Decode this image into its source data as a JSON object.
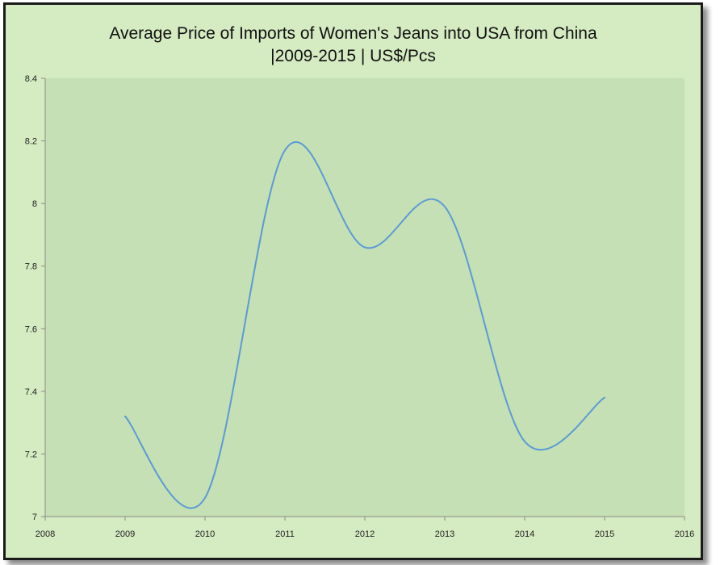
{
  "chart_data": {
    "type": "line",
    "title_line1": "Average Price of Imports of Women's Jeans into USA from China",
    "title_line2": "|2009-2015  | US$/Pcs",
    "xlabel": "",
    "ylabel": "",
    "x": [
      2009,
      2010,
      2011,
      2012,
      2013,
      2014,
      2015
    ],
    "series": [
      {
        "values": [
          7.32,
          7.06,
          8.17,
          7.86,
          7.99,
          7.24,
          7.38
        ]
      }
    ],
    "xlim": [
      2008,
      2016
    ],
    "ylim": [
      7,
      8.4
    ],
    "x_ticks": [
      "2008",
      "2009",
      "2010",
      "2011",
      "2012",
      "2013",
      "2014",
      "2015",
      "2016"
    ],
    "y_ticks": [
      "7",
      "7.2",
      "7.4",
      "7.6",
      "7.8",
      "8",
      "8.2",
      "8.4"
    ],
    "line_color": "#5b9bd5",
    "plot_bg_color": "#c5e0b4",
    "chart_bg_color": "#d5ebc2",
    "smooth": true,
    "grid": false,
    "legend": "none"
  }
}
